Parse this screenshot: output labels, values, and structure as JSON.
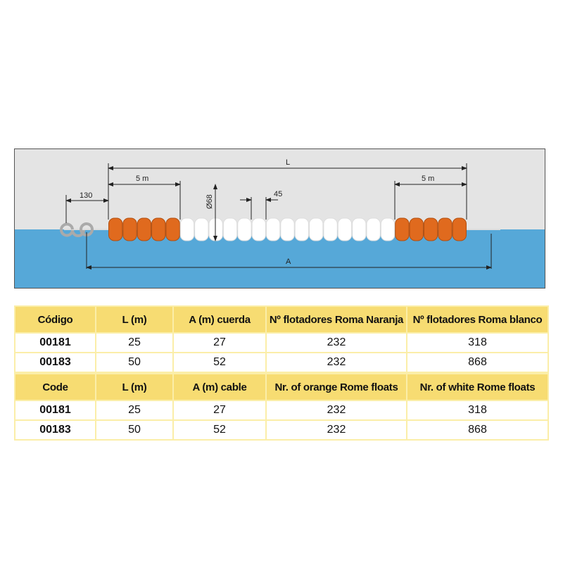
{
  "diagram": {
    "labels": {
      "L": "L",
      "five_m_left": "5 m",
      "five_m_right": "5 m",
      "hook_gap": "130",
      "diameter": "Ø68",
      "spacing": "45",
      "A": "A"
    },
    "colors": {
      "sky": "#e4e4e4",
      "water": "#56a8d8",
      "orange_float": "#e06a1e",
      "white_float": "#ffffff"
    },
    "orange_floats_each_end": 5,
    "white_floats_shown": 15
  },
  "table_es": {
    "headers": [
      "Código",
      "L (m)",
      "A (m) cuerda",
      "Nº flotadores Roma Naranja",
      "Nº flotadores Roma blanco"
    ],
    "rows": [
      [
        "00181",
        "25",
        "27",
        "232",
        "318"
      ],
      [
        "00183",
        "50",
        "52",
        "232",
        "868"
      ]
    ]
  },
  "table_en": {
    "headers": [
      "Code",
      "L (m)",
      "A (m) cable",
      "Nr. of orange Rome floats",
      "Nr. of white Rome floats"
    ],
    "rows": [
      [
        "00181",
        "25",
        "27",
        "232",
        "318"
      ],
      [
        "00183",
        "50",
        "52",
        "232",
        "868"
      ]
    ]
  }
}
